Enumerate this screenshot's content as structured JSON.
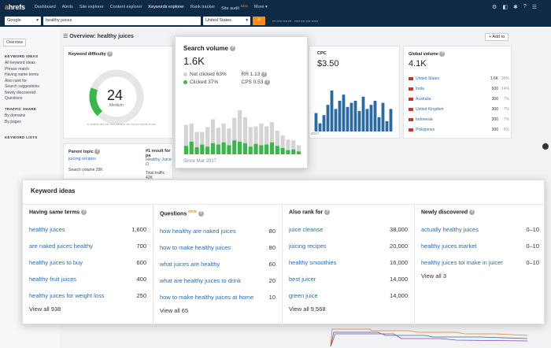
{
  "nav": {
    "logo": "ahrefs",
    "items": [
      "Dashboard",
      "Alerts",
      "Site explorer",
      "Content explorer",
      "Keywords explorer",
      "Rank tracker",
      "Site audit",
      "More"
    ],
    "active": "Keywords explorer",
    "new_badge": "NEW"
  },
  "search": {
    "engine": "Google",
    "query": "healthy juices",
    "country": "United States"
  },
  "sidebar": {
    "tab": "Overview",
    "keywords_ideas_head": "KEYWORD IDEAS",
    "keywords_ideas": [
      "All keyword ideas",
      "Phrase match",
      "Having same terms",
      "Also rank for",
      "Search suggestions",
      "Newly discovered",
      "Questions"
    ],
    "traffic_share_head": "TRAFFIC SHARE",
    "traffic_share": [
      "By domains",
      "By pages"
    ],
    "keyword_lists_head": "KEYWORD LISTS"
  },
  "overview": {
    "label": "Overview:",
    "keyword": "healthy juices",
    "add_to": "+ Add to"
  },
  "difficulty": {
    "title": "Keyword difficulty",
    "value": "24",
    "level": "Medium",
    "score_fraction": 0.24
  },
  "cpc": {
    "title": "CPC",
    "value": "$3.50"
  },
  "global_volume": {
    "title": "Global volume",
    "value": "4.1K",
    "countries": [
      {
        "name": "United States",
        "value": "1.6K",
        "pct": "39%"
      },
      {
        "name": "India",
        "value": "600",
        "pct": "14%"
      },
      {
        "name": "Australia",
        "value": "300",
        "pct": "7%"
      },
      {
        "name": "United Kingdom",
        "value": "300",
        "pct": "7%"
      },
      {
        "name": "Indonesia",
        "value": "300",
        "pct": "7%"
      },
      {
        "name": "Philippines",
        "value": "200",
        "pct": "6%"
      }
    ]
  },
  "parent_topic": {
    "title": "Parent topic",
    "link": "juicing recipes",
    "volume_label": "Search volume 20K",
    "result_title": "#1 result for pa",
    "result_link": "Healthy Juice O",
    "traffic": "Total traffic 42K"
  },
  "popover": {
    "title": "Search volume",
    "value": "1.6K",
    "not_clicked": "Not clicked 63%",
    "clicked": "Clicked 37%",
    "rr": "RR 1.13",
    "cps": "CPS 0.53",
    "since": "Since Mar 2017",
    "clicked_color": "#3cb54a",
    "not_clicked_color": "#d4d4d4",
    "chart_data": {
      "type": "bar",
      "series": [
        {
          "name": "Clicked",
          "values": [
            12,
            18,
            10,
            14,
            11,
            16,
            14,
            17,
            13,
            20,
            18,
            16,
            11,
            15,
            13,
            14,
            17,
            12,
            9,
            6,
            7,
            4
          ]
        },
        {
          "name": "Not clicked",
          "values": [
            30,
            26,
            22,
            18,
            28,
            34,
            24,
            27,
            24,
            32,
            45,
            37,
            28,
            25,
            31,
            26,
            29,
            22,
            18,
            15,
            13,
            9
          ]
        }
      ]
    }
  },
  "cpc_chart": {
    "color": "#2c6aa0",
    "values": [
      18,
      8,
      16,
      26,
      40,
      22,
      30,
      36,
      24,
      28,
      30,
      20,
      34,
      22,
      26,
      30,
      14,
      28,
      10,
      22
    ]
  },
  "ideas": {
    "title": "Keyword ideas",
    "columns": [
      {
        "heading": "Having same terms",
        "rows": [
          {
            "kw": "healthy juices",
            "vol": "1,600"
          },
          {
            "kw": "are naked juices healthy",
            "vol": "700"
          },
          {
            "kw": "healthy juices to buy",
            "vol": "600"
          },
          {
            "kw": "healthy fruit juices",
            "vol": "400"
          },
          {
            "kw": "healthy juices for weight loss",
            "vol": "250"
          }
        ],
        "view_all": "View all 938"
      },
      {
        "heading": "Questions",
        "new": "NEW",
        "rows": [
          {
            "kw": "how healthy are naked juices",
            "vol": "80"
          },
          {
            "kw": "how to make healthy juices",
            "vol": "80"
          },
          {
            "kw": "what juices are healthy",
            "vol": "60"
          },
          {
            "kw": "what are healthy juices to drink",
            "vol": "20"
          },
          {
            "kw": "how to make healthy juices at home",
            "vol": "10"
          }
        ],
        "view_all": "View all 65"
      },
      {
        "heading": "Also rank for",
        "rows": [
          {
            "kw": "juice cleanse",
            "vol": "38,000"
          },
          {
            "kw": "juicing recipes",
            "vol": "20,000"
          },
          {
            "kw": "healthy smoothies",
            "vol": "16,000"
          },
          {
            "kw": "best juicer",
            "vol": "14,000"
          },
          {
            "kw": "green juice",
            "vol": "14,000"
          }
        ],
        "view_all": "View all 9,568"
      },
      {
        "heading": "Newly discovered",
        "rows": [
          {
            "kw": "actually healthy juices",
            "vol": "0–10"
          },
          {
            "kw": "healthy juices market",
            "vol": "0–10"
          },
          {
            "kw": "healthy juices toi make in juicer",
            "vol": "0–10"
          }
        ],
        "view_all": "View all 3"
      }
    ]
  }
}
